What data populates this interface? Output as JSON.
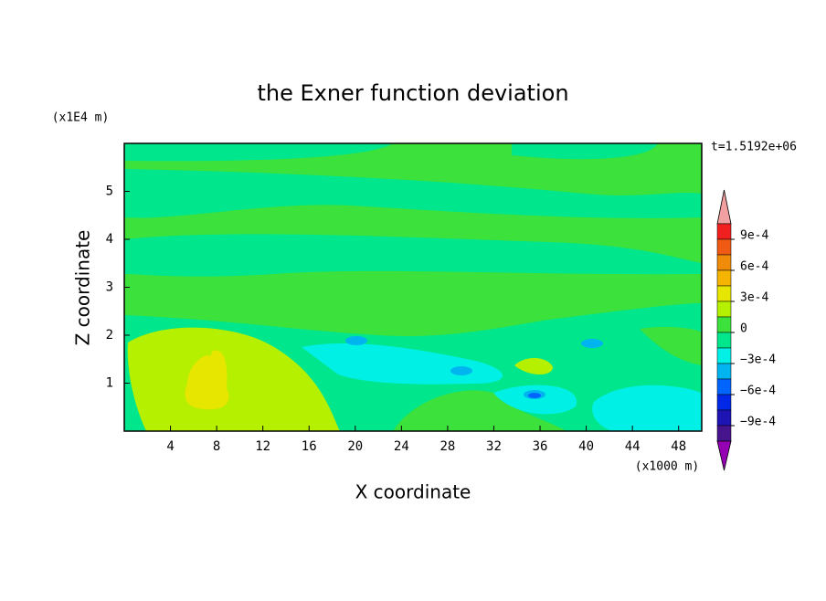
{
  "chart_data": {
    "type": "contour",
    "title": "the Exner function deviation",
    "xlabel": "X coordinate",
    "ylabel": "Z coordinate",
    "x_unit": "(x1000 m)",
    "y_unit": "(x1E4 m)",
    "time_label": "t=1.5192e+06",
    "xlim": [
      0,
      50
    ],
    "xticks": [
      4,
      8,
      12,
      16,
      20,
      24,
      28,
      32,
      36,
      40,
      44,
      48
    ],
    "ylim": [
      0,
      6
    ],
    "yticks": [
      1,
      2,
      3,
      4,
      5
    ],
    "colorbar": {
      "clim": [
        -0.00105,
        0.00105
      ],
      "ticks": [
        {
          "value": 0.0009,
          "label": "9e-4"
        },
        {
          "value": 0.0006,
          "label": "6e-4"
        },
        {
          "value": 0.0003,
          "label": "3e-4"
        },
        0,
        {
          "value": -0.0003,
          "label": "−3e-4"
        },
        {
          "value": -0.0006,
          "label": "−6e-4"
        },
        {
          "value": -0.0009,
          "label": "−9e-4"
        }
      ],
      "colors": [
        "#f02020",
        "#f05a14",
        "#f08c0a",
        "#f5b400",
        "#e6e600",
        "#b4f000",
        "#3ce13c",
        "#00e68c",
        "#00f0e6",
        "#00b4f0",
        "#0064ff",
        "#0028e6",
        "#1e14b4",
        "#46148c"
      ],
      "over_color": "#f0a0a0",
      "under_color": "#9600b4"
    }
  }
}
